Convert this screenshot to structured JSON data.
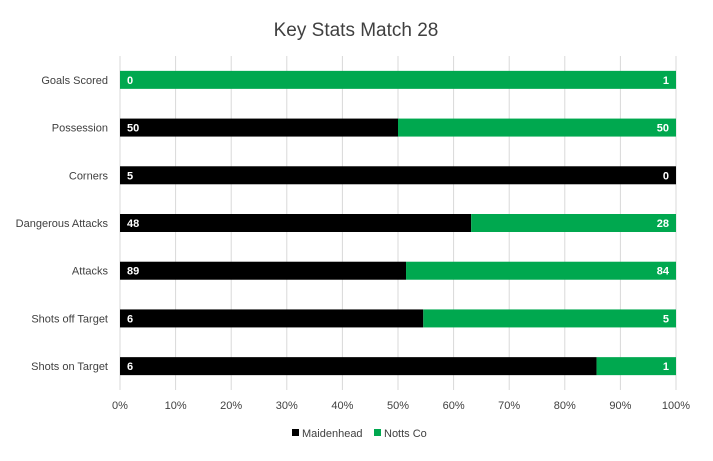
{
  "chart_data": {
    "type": "bar",
    "orientation": "horizontal",
    "stacked": "percent",
    "title": "Key Stats Match 28",
    "xlabel": "",
    "ylabel": "",
    "categories": [
      "Goals Scored",
      "Possession",
      "Corners",
      "Dangerous Attacks",
      "Attacks",
      "Shots off Target",
      "Shots on Target"
    ],
    "series": [
      {
        "name": "Maidenhead",
        "color": "#000000",
        "values": [
          0,
          50,
          5,
          48,
          89,
          6,
          6
        ]
      },
      {
        "name": "Notts Co",
        "color": "#00a84f",
        "values": [
          1,
          50,
          0,
          28,
          84,
          5,
          1
        ]
      }
    ],
    "xlim": [
      0,
      100
    ],
    "xticks": [
      "0%",
      "10%",
      "20%",
      "30%",
      "40%",
      "50%",
      "60%",
      "70%",
      "80%",
      "90%",
      "100%"
    ],
    "grid": true,
    "legend": "bottom"
  }
}
